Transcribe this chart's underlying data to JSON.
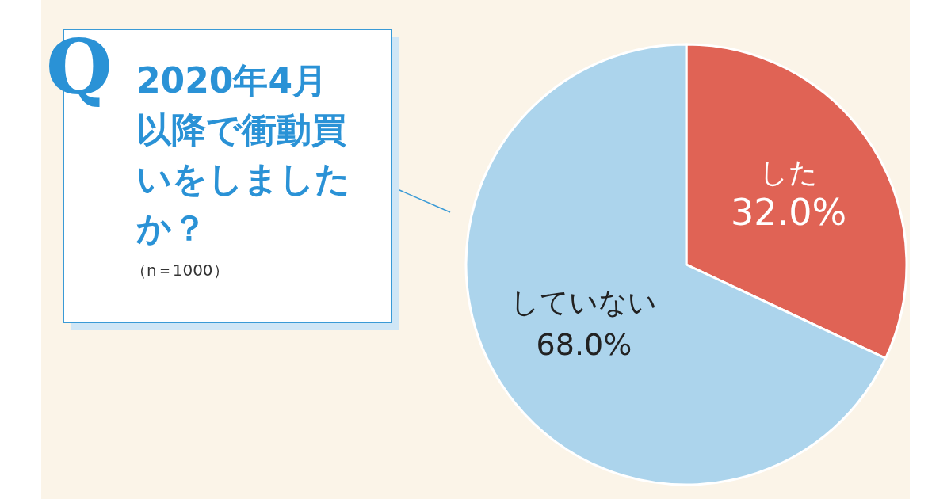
{
  "chart_data": {
    "type": "pie",
    "title": "2020年4月以降で衝動買いをしましたか？",
    "annotations": [
      "Q",
      "（n＝1000）"
    ],
    "categories": [
      "した",
      "していない"
    ],
    "values": [
      32.0,
      68.0
    ],
    "colors": [
      "#e06355",
      "#acd4ec"
    ],
    "value_labels": [
      "32.0%",
      "68.0%"
    ]
  }
}
